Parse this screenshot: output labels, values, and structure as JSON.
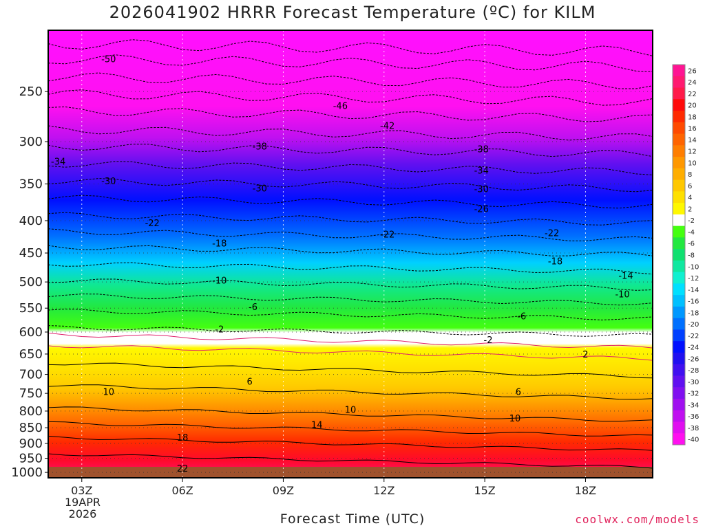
{
  "chart_data": {
    "type": "heatmap",
    "title": "2026041902 HRRR Forecast Temperature (ºC) for KILM",
    "xlabel": "Forecast Time (UTC)",
    "ylabel": "",
    "credit": "coolwx.com/models",
    "date_line1": "19APR",
    "date_line2": "2026",
    "x_ticks": [
      "03Z",
      "06Z",
      "09Z",
      "12Z",
      "15Z",
      "18Z"
    ],
    "x_tick_hours": [
      3,
      6,
      9,
      12,
      15,
      18
    ],
    "x_range_hours": [
      2,
      20
    ],
    "y_ticks": [
      250,
      300,
      350,
      400,
      450,
      500,
      550,
      600,
      650,
      700,
      750,
      800,
      850,
      900,
      950,
      1000
    ],
    "y_range_hpa": [
      200,
      1020
    ],
    "y_scale": "log",
    "colorbar_ticks": [
      26,
      24,
      22,
      20,
      18,
      16,
      14,
      12,
      10,
      8,
      6,
      4,
      2,
      -2,
      -4,
      -6,
      -8,
      -10,
      -12,
      -14,
      -16,
      -18,
      -20,
      -22,
      -24,
      -26,
      -28,
      -30,
      -32,
      -34,
      -36,
      -38,
      -40
    ],
    "colorbar_colors": [
      "#ff1493",
      "#ff1a70",
      "#ff1a4a",
      "#ff0a0a",
      "#ff2a00",
      "#ff4a00",
      "#ff6400",
      "#ff7e00",
      "#ff9800",
      "#ffae00",
      "#ffc800",
      "#ffe000",
      "#fff800",
      "#ffffff",
      "#44ff10",
      "#22e840",
      "#10e070",
      "#10e8a0",
      "#10f0d0",
      "#00e0ff",
      "#00c0ff",
      "#0098ff",
      "#0070ff",
      "#0040ff",
      "#0010ff",
      "#2010f0",
      "#4010f0",
      "#6010f0",
      "#8010f0",
      "#a010f0",
      "#c010f0",
      "#e010f0",
      "#ff10f0"
    ],
    "contour_labels": [
      {
        "t": "-50",
        "h": 3.8,
        "p": 222
      },
      {
        "t": "-46",
        "h": 10.7,
        "p": 263
      },
      {
        "t": "-42",
        "h": 12.1,
        "p": 283
      },
      {
        "t": "-38",
        "h": 8.3,
        "p": 305
      },
      {
        "t": "-38",
        "h": 14.9,
        "p": 308
      },
      {
        "t": "-34",
        "h": 2.3,
        "p": 322
      },
      {
        "t": "-34",
        "h": 14.9,
        "p": 333
      },
      {
        "t": "-30",
        "h": 3.8,
        "p": 346
      },
      {
        "t": "-30",
        "h": 8.3,
        "p": 355
      },
      {
        "t": "-30",
        "h": 14.9,
        "p": 356
      },
      {
        "t": "-26",
        "h": 14.9,
        "p": 383
      },
      {
        "t": "-22",
        "h": 5.1,
        "p": 403
      },
      {
        "t": "-22",
        "h": 12.1,
        "p": 420
      },
      {
        "t": "-22",
        "h": 17.0,
        "p": 418
      },
      {
        "t": "-18",
        "h": 7.1,
        "p": 434
      },
      {
        "t": "-18",
        "h": 17.1,
        "p": 463
      },
      {
        "t": "-14",
        "h": 19.2,
        "p": 488
      },
      {
        "t": "-10",
        "h": 7.1,
        "p": 497
      },
      {
        "t": "-10",
        "h": 19.1,
        "p": 522
      },
      {
        "t": "-6",
        "h": 8.1,
        "p": 547
      },
      {
        "t": "-6",
        "h": 16.1,
        "p": 566
      },
      {
        "t": "-2",
        "h": 7.1,
        "p": 593
      },
      {
        "t": "-2",
        "h": 15.1,
        "p": 617
      },
      {
        "t": "2",
        "h": 18.0,
        "p": 650
      },
      {
        "t": "6",
        "h": 8.0,
        "p": 718
      },
      {
        "t": "6",
        "h": 16.0,
        "p": 745
      },
      {
        "t": "10",
        "h": 3.8,
        "p": 745
      },
      {
        "t": "10",
        "h": 11.0,
        "p": 795
      },
      {
        "t": "10",
        "h": 15.9,
        "p": 820
      },
      {
        "t": "14",
        "h": 10.0,
        "p": 840
      },
      {
        "t": "18",
        "h": 6.0,
        "p": 880
      },
      {
        "t": "22",
        "h": 6.0,
        "p": 985
      }
    ]
  }
}
